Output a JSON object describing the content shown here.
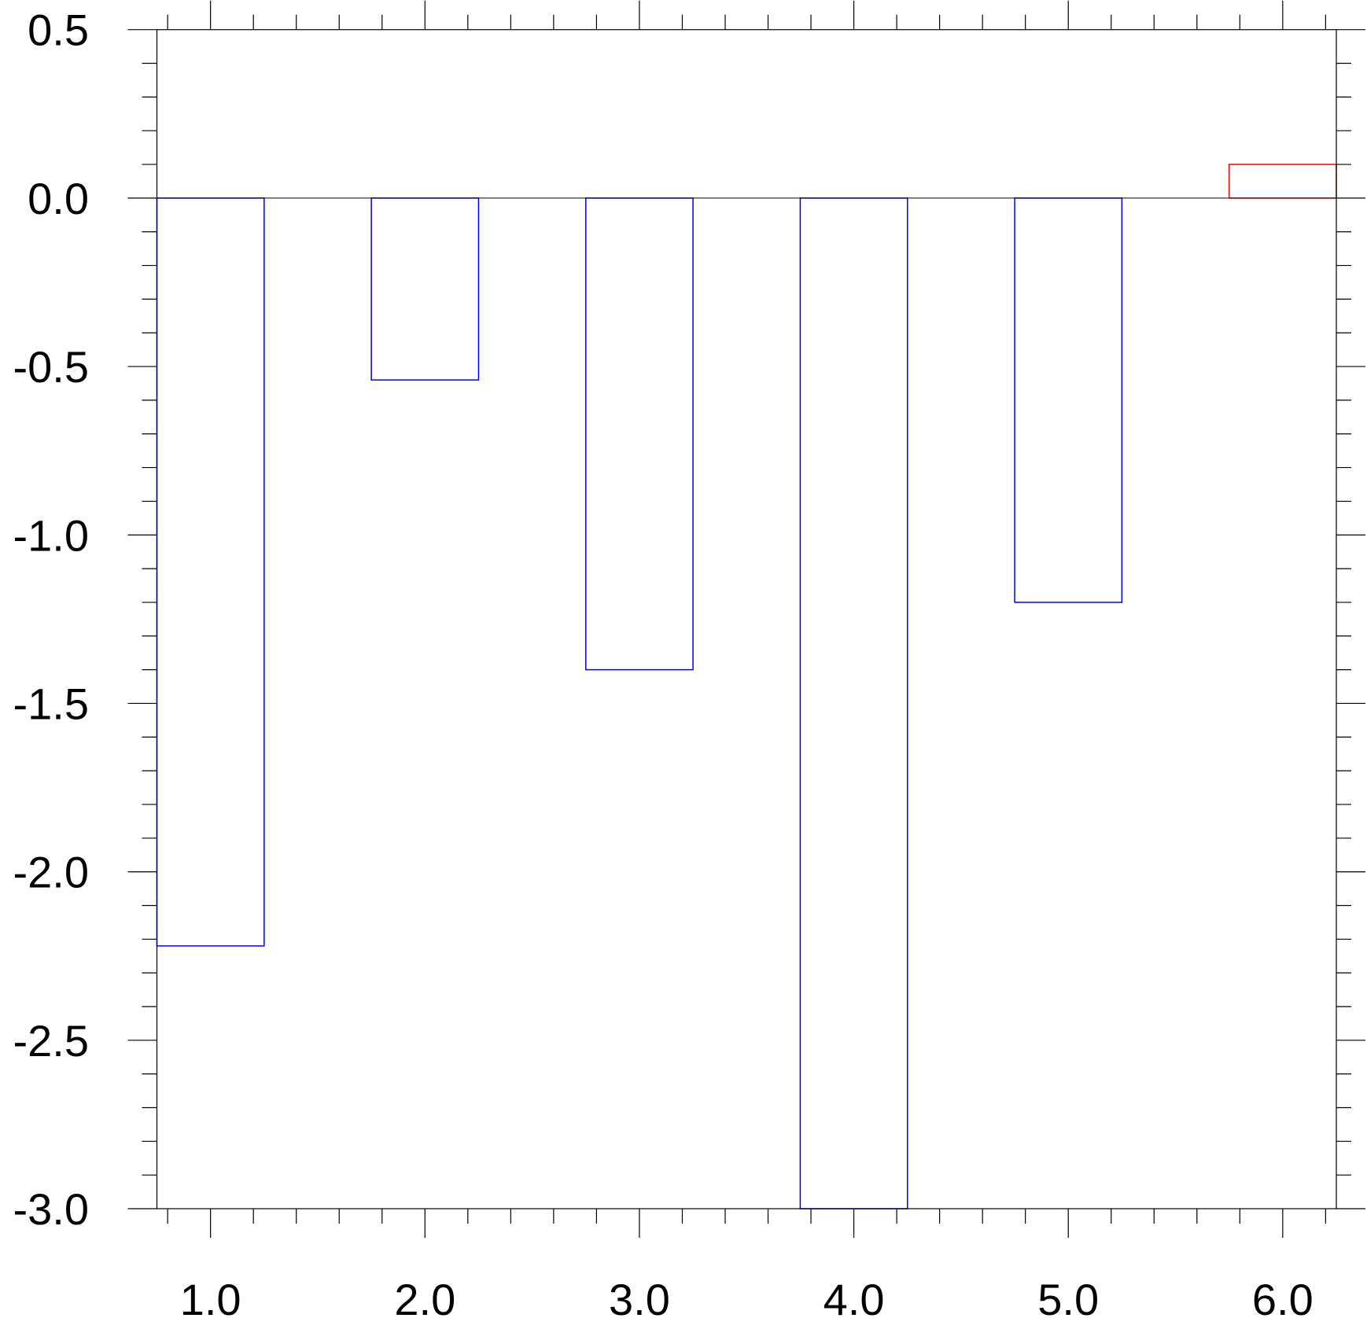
{
  "chart_data": {
    "type": "bar",
    "x": [
      1.0,
      2.0,
      3.0,
      4.0,
      5.0,
      6.0
    ],
    "values": [
      -2.22,
      -0.54,
      -1.4,
      -3.0,
      -1.2,
      0.1
    ],
    "bar_width": 0.5,
    "xlim": [
      0.75,
      6.25
    ],
    "ylim": [
      -3.0,
      0.5
    ],
    "xticks": [
      "1.0",
      "2.0",
      "3.0",
      "4.0",
      "5.0",
      "6.0"
    ],
    "yticks": [
      "0.5",
      "0.0",
      "-0.5",
      "-1.0",
      "-1.5",
      "-2.0",
      "-2.5",
      "-3.0"
    ],
    "ytick_values": [
      0.5,
      0.0,
      -0.5,
      -1.0,
      -1.5,
      -2.0,
      -2.5,
      -3.0
    ],
    "title": "",
    "xlabel": "",
    "ylabel": "",
    "fill": "none",
    "colors": {
      "negative": "#0000ff",
      "positive": "#ff0000",
      "axis": "#000000"
    },
    "grid": false
  }
}
